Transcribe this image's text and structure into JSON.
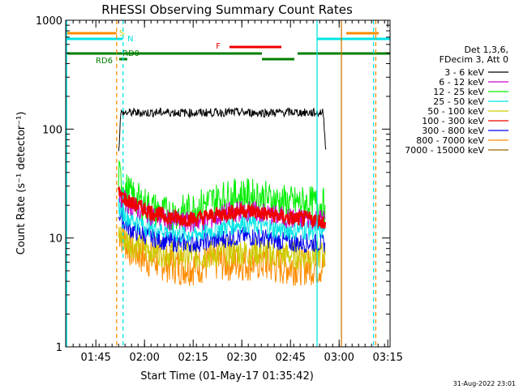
{
  "chart_data": {
    "type": "line",
    "title": "RHESSI Observing Summary Count Rates",
    "xlabel": "Start Time (01-May-17 01:35:42)",
    "ylabel": "Count Rate (s⁻¹ detector⁻¹)",
    "y_scale": "log",
    "ylim": [
      1,
      1000
    ],
    "y_ticks": [
      1,
      10,
      100,
      1000
    ],
    "y_tick_labels": [
      "1",
      "10",
      "100",
      "1000"
    ],
    "xlim_minutes": [
      0,
      100
    ],
    "x_ticks": [
      {
        "minute": 9.3,
        "label": "01:45"
      },
      {
        "minute": 24.3,
        "label": "02:00"
      },
      {
        "minute": 39.3,
        "label": "02:15"
      },
      {
        "minute": 54.3,
        "label": "02:30"
      },
      {
        "minute": 69.3,
        "label": "02:45"
      },
      {
        "minute": 84.3,
        "label": "03:00"
      },
      {
        "minute": 99.3,
        "label": "03:15"
      }
    ],
    "legend_header": [
      "Det 1,3,6,",
      "FDecim 3, Att 0"
    ],
    "legend_position": "right",
    "grid": false,
    "series": [
      {
        "name": "3 - 6 keV",
        "color": "#000000",
        "x": [
          16.3,
          17,
          20,
          25,
          30,
          35,
          40,
          45,
          50,
          55,
          60,
          65,
          70,
          75,
          79.4,
          80.2
        ],
        "y": [
          60,
          140,
          142,
          141,
          143,
          142,
          141,
          142,
          143,
          142,
          141,
          142,
          143,
          141,
          142,
          65
        ]
      },
      {
        "name": "6 - 12 keV",
        "color": "#cc00cc",
        "x": [
          16.3,
          18,
          20,
          25,
          30,
          35,
          40,
          45,
          50,
          55,
          60,
          65,
          70,
          75,
          80
        ],
        "y": [
          24,
          22,
          20,
          17,
          15,
          14,
          14,
          15,
          17,
          18,
          17,
          16,
          15,
          15,
          15
        ]
      },
      {
        "name": "12 - 25 keV",
        "color": "#00ee00",
        "x": [
          16.3,
          18,
          20,
          25,
          30,
          35,
          40,
          45,
          50,
          55,
          60,
          65,
          70,
          75,
          80
        ],
        "y": [
          38,
          30,
          25,
          20,
          17,
          17,
          19,
          22,
          24,
          25,
          24,
          22,
          21,
          21,
          20
        ]
      },
      {
        "name": "25 - 50 keV",
        "color": "#00e5e5",
        "x": [
          16.3,
          18,
          20,
          25,
          30,
          35,
          40,
          45,
          50,
          55,
          60,
          65,
          70,
          75,
          80
        ],
        "y": [
          20,
          17,
          15,
          13,
          12,
          11,
          11,
          12,
          13,
          14,
          13,
          12,
          12,
          12,
          12
        ]
      },
      {
        "name": "50 - 100 keV",
        "color": "#cccc00",
        "x": [
          16.3,
          18,
          20,
          25,
          30,
          35,
          40,
          45,
          50,
          55,
          60,
          65,
          70,
          75,
          80
        ],
        "y": [
          11,
          10,
          9,
          8,
          7.5,
          7,
          7,
          7,
          7.5,
          7.5,
          7.5,
          7,
          7,
          7,
          7
        ]
      },
      {
        "name": "100 - 300 keV",
        "color": "#ee0000",
        "x": [
          16.3,
          18,
          20,
          25,
          30,
          35,
          40,
          45,
          50,
          55,
          60,
          65,
          70,
          75,
          80
        ],
        "y": [
          26,
          23,
          21,
          18,
          16,
          15,
          15,
          16,
          17,
          18,
          17,
          16,
          15,
          15,
          14
        ]
      },
      {
        "name": "300 - 800 keV",
        "color": "#0000ee",
        "x": [
          16.3,
          18,
          20,
          25,
          30,
          35,
          40,
          45,
          50,
          55,
          60,
          65,
          70,
          75,
          80
        ],
        "y": [
          17,
          14,
          12,
          10.5,
          9.5,
          9,
          9,
          9.5,
          10,
          10.5,
          10,
          9.5,
          9,
          9,
          9
        ]
      },
      {
        "name": "800 - 7000 keV",
        "color": "#ff8c00",
        "x": [
          16.3,
          18,
          20,
          25,
          30,
          35,
          40,
          45,
          50,
          55,
          60,
          65,
          70,
          75,
          80
        ],
        "y": [
          12,
          9.5,
          8,
          6.5,
          6,
          5.5,
          5.5,
          6,
          6,
          6,
          6,
          5.5,
          5.5,
          5.5,
          5.5
        ]
      },
      {
        "name": "7000 - 15000 keV",
        "color": "#996600",
        "x": [],
        "y": []
      }
    ],
    "status_flags": [
      {
        "label": "S",
        "color": "#ff8c00",
        "label_color": "#cccc00",
        "segments": [
          [
            0,
            15.7
          ],
          [
            86.5,
            96.5
          ]
        ]
      },
      {
        "label": "N",
        "color": "#00e5e5",
        "label_color": "#00e5e5",
        "segments": [
          [
            0,
            17.5
          ],
          [
            77.5,
            100
          ]
        ]
      },
      {
        "label": "F",
        "color": "#ee0000",
        "label_color": "#ee0000",
        "segments": [
          [
            50.5,
            66.5
          ]
        ]
      },
      {
        "label": "RD0",
        "color": "#008000",
        "label_color": "#008000",
        "segments": [
          [
            0,
            60.5
          ],
          [
            71.5,
            100
          ]
        ]
      },
      {
        "label": "RD6",
        "color": "#008000",
        "label_color": "#008000",
        "segments": [
          [
            16.5,
            19
          ],
          [
            60.5,
            70.5
          ]
        ]
      }
    ],
    "vertical_markers": [
      {
        "minute": 0.3,
        "color": "#00e5e5",
        "style": "solid"
      },
      {
        "minute": 15.7,
        "color": "#ff8c00",
        "style": "dashed"
      },
      {
        "minute": 17.7,
        "color": "#00e5e5",
        "style": "dashed"
      },
      {
        "minute": 77.5,
        "color": "#00e5e5",
        "style": "solid"
      },
      {
        "minute": 85.0,
        "color": "#cc7a00",
        "style": "solid"
      },
      {
        "minute": 94.9,
        "color": "#00e5e5",
        "style": "dashed"
      },
      {
        "minute": 95.6,
        "color": "#ff8c00",
        "style": "dashed"
      }
    ],
    "timestamp": "31-Aug-2022 23:01"
  }
}
